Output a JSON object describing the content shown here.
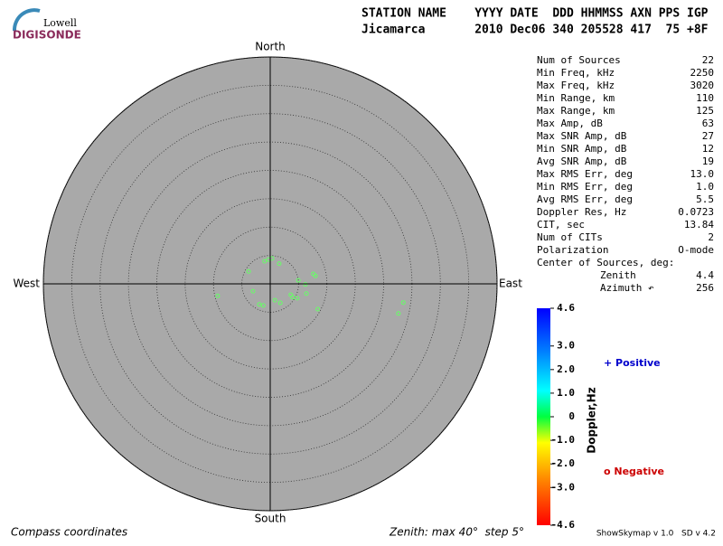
{
  "header": {
    "logo_top": "Lowell",
    "logo_bottom": "DIGISONDE",
    "columns_line": "STATION NAME    YYYY DATE  DDD HHMMSS AXN PPS IGP",
    "values_line": "Jicamarca       2010 Dec06 340 205528 417  75 +8F"
  },
  "chart_data": {
    "type": "polar-scatter",
    "directions": {
      "north": "North",
      "south": "South",
      "east": "East",
      "west": "West"
    },
    "rlim": [
      0,
      40
    ],
    "rticks": [
      5,
      10,
      15,
      20,
      25,
      30,
      35,
      40
    ],
    "sources": {
      "color": "#66ff66",
      "zenith": [
        4.1,
        4.3,
        4.5,
        3.9,
        5.0,
        7.8,
        8.1,
        6.2,
        6.6,
        4.1,
        5.4,
        3.8,
        3.0,
        4.1,
        3.3,
        9.5,
        9.5,
        23.2,
        23.7,
        4.6,
        4.0,
        4.4
      ],
      "azimuth": [
        346,
        356,
        4,
        24,
        83,
        77,
        80,
        91,
        105,
        118,
        118,
        152,
        164,
        208,
        247,
        257,
        118,
        103,
        98,
        121,
        198,
        300
      ]
    },
    "footer_left": "Compass coordinates",
    "footer_right": "Zenith: max 40°  step 5°"
  },
  "stats": [
    [
      "Num of Sources",
      "22"
    ],
    [
      "Min Freq, kHz",
      "2250"
    ],
    [
      "Max Freq, kHz",
      "3020"
    ],
    [
      "Min Range, km",
      "110"
    ],
    [
      "Max Range, km",
      "125"
    ],
    [
      "Max Amp, dB",
      "63"
    ],
    [
      "Max SNR Amp, dB",
      "27"
    ],
    [
      "Min SNR Amp, dB",
      "12"
    ],
    [
      "Avg SNR Amp, dB",
      "19"
    ],
    [
      "Max RMS Err, deg",
      "13.0"
    ],
    [
      "Min RMS Err, deg",
      "1.0"
    ],
    [
      "Avg RMS Err, deg",
      "5.5"
    ],
    [
      "Doppler Res, Hz",
      "0.0723"
    ],
    [
      "CIT, sec",
      "13.84"
    ],
    [
      "Num of CITs",
      "2"
    ],
    [
      "Polarization",
      "O-mode"
    ]
  ],
  "center": {
    "title": "Center of Sources, deg:",
    "rows": [
      [
        "Zenith",
        "4.4"
      ],
      [
        "Azimuth ↶",
        "256"
      ]
    ]
  },
  "colorbar": {
    "label": "Doppler,Hz",
    "ylim": [
      -4.6,
      4.6
    ],
    "ticks": [
      4.6,
      {
        "value": 3,
        "label": "3.0"
      },
      {
        "value": 2,
        "label": "2.0"
      },
      {
        "value": 1,
        "label": "1.0"
      },
      0,
      {
        "value": -1,
        "label": "-1.0"
      },
      {
        "value": -2,
        "label": "-2.0"
      },
      {
        "value": -3,
        "label": "-3.0"
      },
      -4.6
    ]
  },
  "legend": {
    "positive": "+ Positive",
    "negative": "o Negative"
  },
  "footer_version": "ShowSkymap v 1.0   SD v 4.2"
}
